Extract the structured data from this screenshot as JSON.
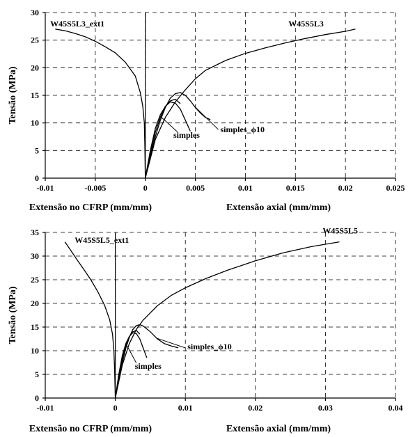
{
  "chart_data": [
    {
      "type": "line",
      "title": "",
      "xlim": [
        -0.01,
        0.025
      ],
      "ylim": [
        0,
        30
      ],
      "xticks": [
        "-0.01",
        "-0.005",
        "0",
        "0.005",
        "0.01",
        "0.015",
        "0.02",
        "0.025"
      ],
      "yticks": [
        "0",
        "5",
        "10",
        "15",
        "20",
        "25",
        "30"
      ],
      "ylabel": "Tensão (MPa)",
      "xlabel_left": "Extensão no CFRP (mm/mm)",
      "xlabel_right": "Extensão axial (mm/mm)",
      "grid": true,
      "series": [
        {
          "name": "W45S5L3_ext1",
          "x": [
            0,
            -5e-05,
            -0.0001,
            -0.00025,
            -0.0005,
            -0.001,
            -0.002,
            -0.003,
            -0.004,
            -0.005,
            -0.006,
            -0.007,
            -0.008,
            -0.009
          ],
          "y": [
            0,
            6,
            10,
            13,
            15.5,
            18.5,
            21,
            22.7,
            23.8,
            24.8,
            25.6,
            26.2,
            26.7,
            27
          ]
        },
        {
          "name": "W45S5L3",
          "x": [
            0,
            0.001,
            0.002,
            0.003,
            0.004,
            0.005,
            0.006,
            0.008,
            0.01,
            0.012,
            0.014,
            0.016,
            0.018,
            0.02,
            0.021
          ],
          "y": [
            0,
            7,
            11,
            13.8,
            16,
            18,
            19.5,
            21.3,
            22.6,
            23.6,
            24.5,
            25.3,
            26,
            26.6,
            27
          ]
        },
        {
          "name": "simples",
          "x": [
            0,
            0.0005,
            0.001,
            0.0015,
            0.002,
            0.0025,
            0.003,
            0.0035,
            0.004,
            0.0045
          ],
          "y": [
            0,
            5,
            9,
            11.5,
            13,
            13.8,
            13.6,
            12.5,
            10.5,
            8.5
          ]
        },
        {
          "name": "simples_φ10",
          "x": [
            0,
            0.0005,
            0.001,
            0.0015,
            0.002,
            0.0025,
            0.003,
            0.0035,
            0.004,
            0.0045,
            0.005,
            0.0055,
            0.006,
            0.0065
          ],
          "y": [
            0,
            4,
            7.5,
            10.5,
            12.8,
            14.5,
            15.3,
            15.5,
            15,
            14,
            12.8,
            11.8,
            11,
            10.6
          ]
        },
        {
          "name": "",
          "x": [
            0,
            0.0005,
            0.001,
            0.0015,
            0.002,
            0.0025,
            0.003,
            0.0035
          ],
          "y": [
            0,
            4.5,
            8.3,
            11,
            13,
            14,
            14.3,
            13.5
          ]
        }
      ],
      "annotations": [
        {
          "text": "W45S5L3_ext1",
          "x": -0.0095,
          "y": 27.5
        },
        {
          "text": "W45S5L3",
          "x": 0.0143,
          "y": 27.5
        },
        {
          "text": "simples",
          "x": 0.0028,
          "y": 7.3
        },
        {
          "text": "simples_ϕ10",
          "x": 0.0075,
          "y": 8.3
        }
      ]
    },
    {
      "type": "line",
      "title": "",
      "xlim": [
        -0.01,
        0.04
      ],
      "ylim": [
        0,
        35
      ],
      "xticks": [
        "-0.01",
        "0",
        "0.01",
        "0.02",
        "0.03",
        "0.04"
      ],
      "yticks": [
        "0",
        "5",
        "10",
        "15",
        "20",
        "25",
        "30",
        "35"
      ],
      "ylabel": "Tensão (MPa)",
      "xlabel_left": "Extensão no CFRP (mm/mm)",
      "xlabel_right": "Extensão axial (mm/mm)",
      "grid": true,
      "series": [
        {
          "name": "W45S5L5_ext1",
          "x": [
            0,
            -0.0001,
            -0.0002,
            -0.0004,
            -0.0008,
            -0.0015,
            -0.0025,
            -0.0035,
            -0.0045,
            -0.0055,
            -0.0065,
            -0.0072
          ],
          "y": [
            0,
            6,
            10,
            13.5,
            16.5,
            19.5,
            22.5,
            25,
            27.2,
            29.3,
            31.5,
            33
          ]
        },
        {
          "name": "W45S5L5",
          "x": [
            0,
            0.001,
            0.002,
            0.003,
            0.004,
            0.006,
            0.008,
            0.01,
            0.013,
            0.016,
            0.02,
            0.024,
            0.028,
            0.032
          ],
          "y": [
            0,
            7,
            11.5,
            14.5,
            16.5,
            19.5,
            21.7,
            23.3,
            25.3,
            27,
            29,
            30.7,
            32,
            33
          ]
        },
        {
          "name": "simples",
          "x": [
            0,
            0.0005,
            0.001,
            0.0015,
            0.002,
            0.0025,
            0.003,
            0.0035,
            0.004,
            0.0045
          ],
          "y": [
            0,
            5,
            9,
            11.5,
            13,
            13.8,
            13.6,
            12.5,
            10.5,
            8.5
          ]
        },
        {
          "name": "simples_φ10",
          "x": [
            0,
            0.0005,
            0.001,
            0.0015,
            0.002,
            0.0025,
            0.003,
            0.0035,
            0.004,
            0.005,
            0.006,
            0.007,
            0.008,
            0.009
          ],
          "y": [
            0,
            4,
            7.5,
            10.5,
            12.8,
            14.5,
            15.3,
            15.5,
            15.2,
            14,
            12.5,
            11.5,
            11,
            10.6
          ]
        },
        {
          "name": "",
          "x": [
            0,
            0.0005,
            0.001,
            0.0015,
            0.002,
            0.0025,
            0.003,
            0.0035
          ],
          "y": [
            0,
            4.5,
            8.3,
            11,
            13,
            14,
            14.3,
            13.5
          ]
        }
      ],
      "annotations": [
        {
          "text": "W45S5L5_ext1",
          "x": -0.0058,
          "y": 32.8
        },
        {
          "text": "W45S5L5",
          "x": 0.0296,
          "y": 34.8
        },
        {
          "text": "simples",
          "x": 0.0028,
          "y": 6.2
        },
        {
          "text": "simples_ϕ10",
          "x": 0.0103,
          "y": 10.3
        }
      ]
    }
  ]
}
